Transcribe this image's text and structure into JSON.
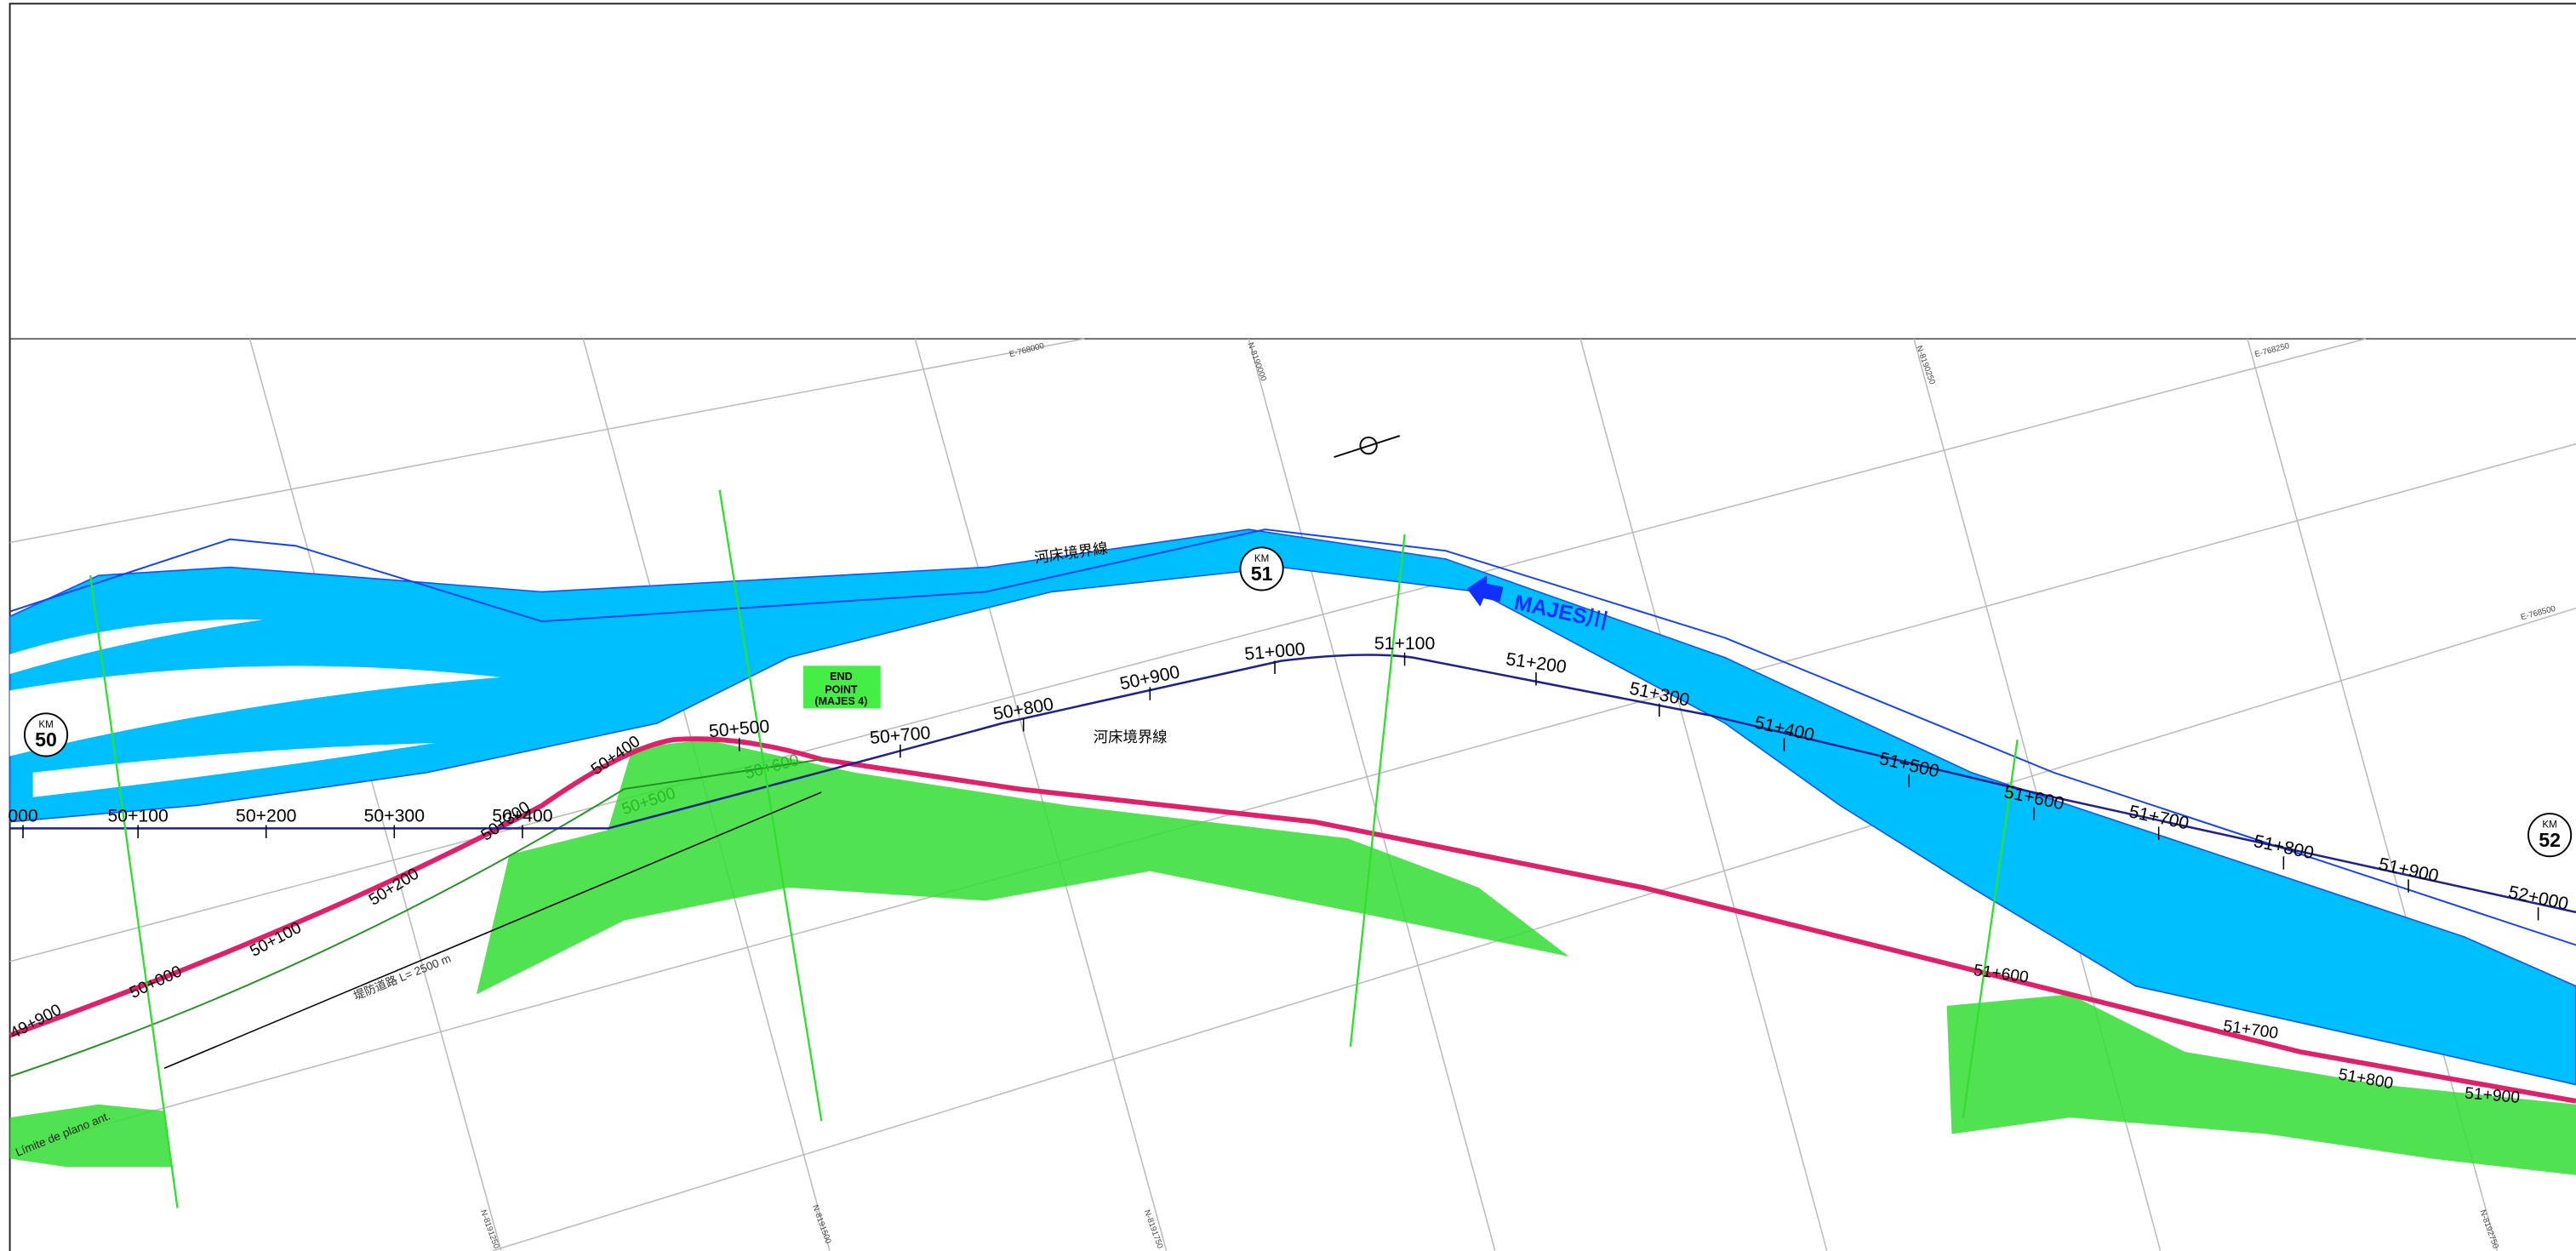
{
  "river_boundary_labels": [
    "河床境界線",
    "河床境界線"
  ],
  "river_name": "MAJES川",
  "km_markers": [
    {
      "km": "KM",
      "num": "50"
    },
    {
      "km": "KM",
      "num": "51"
    },
    {
      "km": "KM",
      "num": "52"
    }
  ],
  "end_point": [
    "END",
    "POINT",
    "(MAJES 4)"
  ],
  "chainage": [
    "000",
    "50+100",
    "50+200",
    "50+300",
    "50+400",
    "50+500",
    "50+700",
    "50+800",
    "50+900",
    "51+000",
    "51+100",
    "51+200",
    "51+300",
    "51+400",
    "51+500",
    "51+600",
    "51+700",
    "51+800",
    "51+900",
    "52+000"
  ],
  "road_chainage": [
    "49+900",
    "50+000",
    "50+100",
    "50+200",
    "50+300",
    "50+400",
    "50+500",
    "50+600"
  ],
  "lower_chainage": [
    "51+600",
    "51+700",
    "51+800",
    "51+900"
  ],
  "grid_labels": [
    "E-768000",
    "N-8190000",
    "N-8190250",
    "E-768250",
    "E-768500",
    "N-8191250",
    "N-8191500",
    "N-8191750",
    "N-8192750"
  ],
  "notes": [
    "堤防道路 L= 2500 m",
    "Límite de plano ant."
  ]
}
